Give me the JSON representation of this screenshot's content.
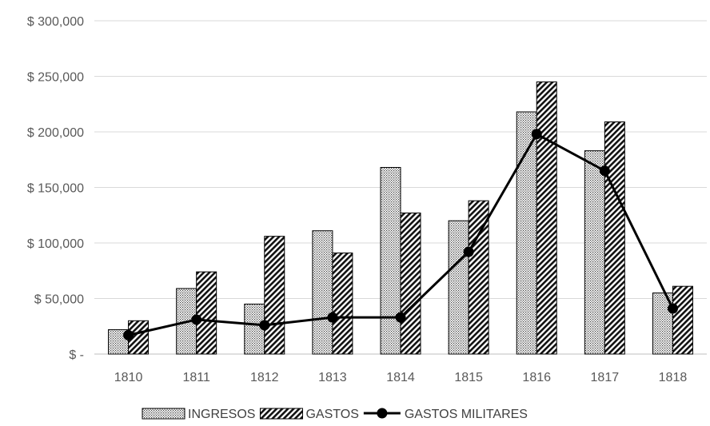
{
  "chart_data": {
    "type": "bar",
    "categories": [
      "1810",
      "1811",
      "1812",
      "1813",
      "1814",
      "1815",
      "1816",
      "1817",
      "1818"
    ],
    "series": [
      {
        "name": "INGRESOS",
        "kind": "bar",
        "pattern": "dots",
        "values": [
          22000,
          59000,
          45000,
          111000,
          168000,
          120000,
          218000,
          183000,
          55000
        ]
      },
      {
        "name": "GASTOS",
        "kind": "bar",
        "pattern": "hatch",
        "values": [
          30000,
          74000,
          106000,
          91000,
          127000,
          138000,
          245000,
          209000,
          61000
        ]
      },
      {
        "name": "GASTOS MILITARES",
        "kind": "line",
        "marker": "circle",
        "values": [
          17000,
          31000,
          26000,
          33000,
          33000,
          92000,
          198000,
          165000,
          41000
        ]
      }
    ],
    "y_ticks": [
      {
        "value": 0,
        "label": "$ -"
      },
      {
        "value": 50000,
        "label": "$ 50,000"
      },
      {
        "value": 100000,
        "label": "$ 100,000"
      },
      {
        "value": 150000,
        "label": "$ 150,000"
      },
      {
        "value": 200000,
        "label": "$ 200,000"
      },
      {
        "value": 250000,
        "label": "$ 250,000"
      },
      {
        "value": 300000,
        "label": "$ 300,000"
      }
    ],
    "ylim": [
      0,
      300000
    ],
    "grid": true,
    "legend_position": "bottom",
    "colors": {
      "line": "#000000",
      "bar_outline": "#000000",
      "grid": "#d9d9d9",
      "tick_text": "#595959"
    }
  }
}
